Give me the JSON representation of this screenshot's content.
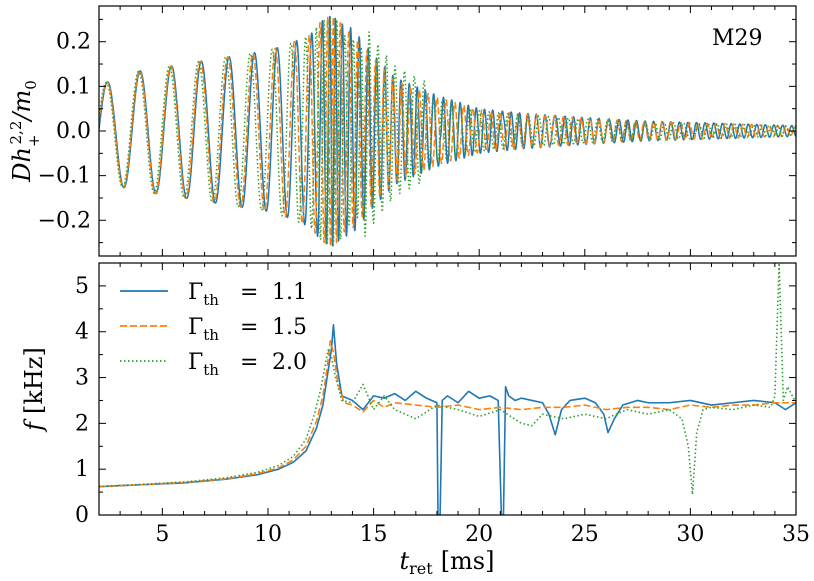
{
  "chart_data": [
    {
      "type": "line",
      "panel": "top",
      "annotation": "M29",
      "ylabel": "Dh_+^{2,2}/m_0",
      "ylabel_parts": {
        "base": "Dh",
        "sub": "+",
        "sup": "2,2",
        "tail": "/m",
        "tail_sub": "0"
      },
      "xlim": [
        2,
        35
      ],
      "ylim": [
        -0.28,
        0.28
      ],
      "yticks": [
        -0.2,
        -0.1,
        0.0,
        0.1,
        0.2
      ],
      "ytick_labels": [
        "−0.2",
        "−0.1",
        "0.0",
        "0.1",
        "0.2"
      ],
      "envelope": {
        "t": [
          2.0,
          3.0,
          4.0,
          6.0,
          8.0,
          10.0,
          11.0,
          12.0,
          12.5,
          13.0,
          13.5,
          14.0,
          15.0,
          16.0,
          17.0,
          18.0,
          20.0,
          22.0,
          25.0,
          28.0,
          31.0,
          35.0
        ],
        "amp": [
          0.1,
          0.125,
          0.135,
          0.15,
          0.165,
          0.18,
          0.195,
          0.215,
          0.245,
          0.26,
          0.24,
          0.23,
          0.17,
          0.12,
          0.1,
          0.08,
          0.05,
          0.04,
          0.03,
          0.022,
          0.018,
          0.012
        ]
      },
      "series": [
        {
          "name": "Γth = 1.1",
          "style": "solid",
          "color": "#1f77b4"
        },
        {
          "name": "Γth = 1.5",
          "style": "dashed",
          "color": "#ff7f0e"
        },
        {
          "name": "Γth = 2.0",
          "style": "dotted",
          "color": "#2ca02c"
        }
      ]
    },
    {
      "type": "line",
      "panel": "bottom",
      "xlabel": "t_ret [ms]",
      "xlabel_parts": {
        "base": "t",
        "sub": "ret",
        "unit": "[ms]"
      },
      "ylabel": "f [kHz]",
      "ylabel_parts": {
        "base": "f",
        "unit": "[kHz]"
      },
      "xlim": [
        2,
        35
      ],
      "ylim": [
        0,
        5.5
      ],
      "xticks": [
        5,
        10,
        15,
        20,
        25,
        30,
        35
      ],
      "xtick_labels": [
        "5",
        "10",
        "15",
        "20",
        "25",
        "30",
        "35"
      ],
      "yticks": [
        0,
        1,
        2,
        3,
        4,
        5
      ],
      "ytick_labels": [
        "0",
        "1",
        "2",
        "3",
        "4",
        "5"
      ],
      "legend_position": "top-left",
      "legend": [
        {
          "sym": "Γ",
          "sub": "th",
          "eq": "=",
          "val": "1.1"
        },
        {
          "sym": "Γ",
          "sub": "th",
          "eq": "=",
          "val": "1.5"
        },
        {
          "sym": "Γ",
          "sub": "th",
          "eq": "=",
          "val": "2.0"
        }
      ],
      "series": [
        {
          "name": "Γth = 1.1",
          "style": "solid",
          "color": "#1f77b4",
          "x": [
            2.0,
            4.0,
            6.0,
            8.0,
            9.5,
            10.5,
            11.2,
            11.8,
            12.3,
            12.6,
            12.8,
            13.0,
            13.1,
            13.25,
            13.5,
            14.0,
            14.5,
            15.0,
            15.5,
            16.0,
            16.5,
            17.0,
            17.5,
            18.0,
            18.05,
            18.15,
            18.25,
            18.5,
            19.0,
            19.5,
            20.0,
            20.5,
            20.9,
            21.05,
            21.15,
            21.25,
            21.4,
            21.7,
            22.0,
            22.5,
            23.0,
            23.3,
            23.6,
            23.9,
            24.3,
            25.0,
            25.5,
            25.9,
            26.1,
            26.4,
            26.8,
            27.5,
            28.0,
            29.0,
            30.0,
            31.0,
            32.0,
            33.0,
            34.0,
            34.5,
            35.0
          ],
          "y": [
            0.62,
            0.66,
            0.7,
            0.78,
            0.88,
            1.0,
            1.15,
            1.4,
            1.9,
            2.4,
            3.0,
            3.6,
            4.15,
            3.3,
            2.6,
            2.5,
            2.3,
            2.6,
            2.55,
            2.65,
            2.5,
            2.7,
            2.55,
            2.45,
            0.0,
            0.0,
            2.5,
            2.6,
            2.45,
            2.7,
            2.55,
            2.6,
            2.5,
            0.0,
            0.0,
            2.8,
            2.6,
            2.5,
            2.55,
            2.5,
            2.45,
            2.2,
            1.75,
            2.3,
            2.5,
            2.55,
            2.45,
            2.2,
            1.8,
            2.1,
            2.4,
            2.5,
            2.45,
            2.45,
            2.5,
            2.4,
            2.45,
            2.5,
            2.45,
            2.3,
            2.45
          ]
        },
        {
          "name": "Γth = 1.5",
          "style": "dashed",
          "color": "#ff7f0e",
          "x": [
            2.0,
            4.0,
            6.0,
            8.0,
            9.5,
            10.5,
            11.2,
            11.8,
            12.3,
            12.6,
            12.8,
            12.95,
            13.1,
            13.3,
            13.6,
            14.0,
            14.5,
            15.0,
            15.5,
            16.0,
            17.0,
            18.0,
            19.0,
            20.0,
            21.0,
            22.0,
            23.0,
            24.0,
            25.0,
            26.0,
            27.0,
            28.0,
            29.0,
            30.0,
            31.0,
            32.0,
            33.0,
            34.0,
            35.0
          ],
          "y": [
            0.62,
            0.66,
            0.71,
            0.79,
            0.9,
            1.03,
            1.2,
            1.5,
            2.05,
            2.6,
            3.2,
            3.8,
            3.55,
            2.9,
            2.45,
            2.4,
            2.25,
            2.5,
            2.35,
            2.45,
            2.4,
            2.35,
            2.4,
            2.3,
            2.35,
            2.3,
            2.35,
            2.35,
            2.4,
            2.3,
            2.35,
            2.35,
            2.3,
            2.4,
            2.35,
            2.4,
            2.4,
            2.45,
            2.45
          ]
        },
        {
          "name": "Γth = 2.0",
          "style": "dotted",
          "color": "#2ca02c",
          "x": [
            2.0,
            4.0,
            6.0,
            8.0,
            9.5,
            10.5,
            11.2,
            11.8,
            12.2,
            12.5,
            12.7,
            12.85,
            13.0,
            13.2,
            13.5,
            14.0,
            14.5,
            15.0,
            15.5,
            16.0,
            16.5,
            17.0,
            18.0,
            19.0,
            20.0,
            21.0,
            22.0,
            22.5,
            23.0,
            24.0,
            25.0,
            26.0,
            27.0,
            28.0,
            29.0,
            29.6,
            29.9,
            30.1,
            30.3,
            30.6,
            31.0,
            32.0,
            33.0,
            33.8,
            34.0,
            34.2,
            34.4,
            34.6,
            35.0
          ],
          "y": [
            0.62,
            0.67,
            0.72,
            0.81,
            0.93,
            1.08,
            1.28,
            1.65,
            2.2,
            2.75,
            3.25,
            3.6,
            3.45,
            3.0,
            2.5,
            2.45,
            2.85,
            2.3,
            2.6,
            2.3,
            2.2,
            2.1,
            2.4,
            2.3,
            2.15,
            2.3,
            2.0,
            1.95,
            2.2,
            2.1,
            2.2,
            2.1,
            2.3,
            2.2,
            2.3,
            2.1,
            1.5,
            0.45,
            1.8,
            2.3,
            2.35,
            2.3,
            2.4,
            2.35,
            2.6,
            5.5,
            2.5,
            2.8,
            2.45
          ]
        }
      ]
    }
  ]
}
